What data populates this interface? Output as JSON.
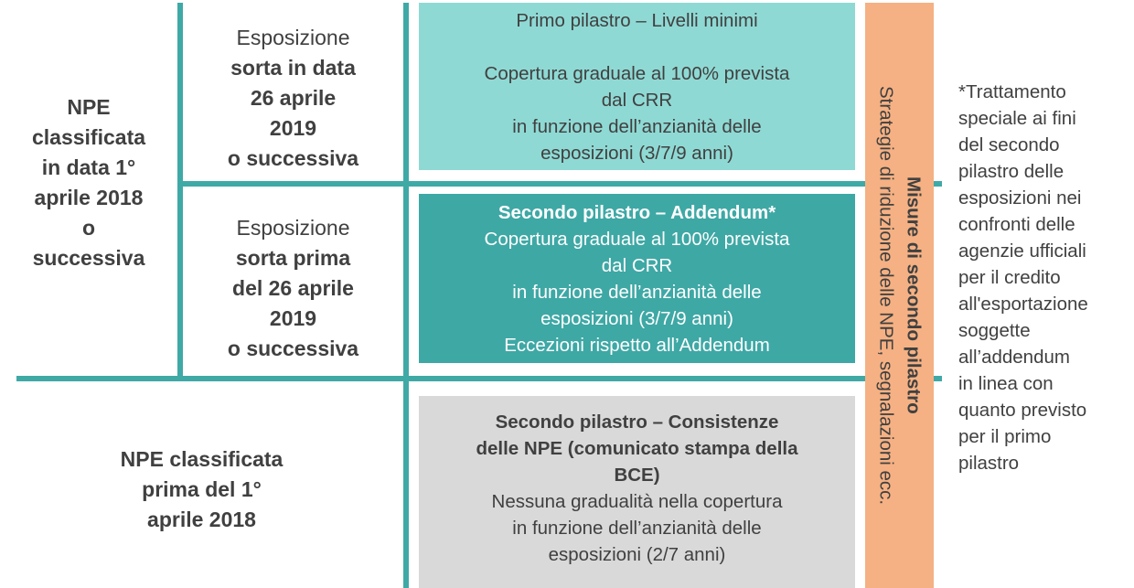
{
  "colors": {
    "line": "#3fa9a6",
    "primo": "#8fd9d4",
    "secondo": "#3ea8a5",
    "consistenze": "#d9d9d9",
    "misure": "#f5b183"
  },
  "left": {
    "top": [
      "NPE",
      "classificata",
      "in data 1°",
      "aprile 2018",
      "o",
      "successiva"
    ],
    "bottom": [
      "NPE classificata",
      "prima del 1°",
      "aprile 2018"
    ]
  },
  "middle": {
    "after": {
      "first": "Esposizione",
      "bold": [
        "sorta in data",
        "26 aprile",
        "2019",
        "o successiva"
      ]
    },
    "before": {
      "first": "Esposizione",
      "bold": [
        "sorta prima",
        "del 26 aprile",
        "2019",
        "o successiva"
      ]
    }
  },
  "boxes": {
    "primo": {
      "title": "Primo pilastro – Livelli minimi",
      "lines": [
        "Copertura graduale al 100% prevista",
        "dal CRR",
        "in funzione dell’anzianità delle",
        "esposizioni (3/7/9 anni)"
      ]
    },
    "addendum": {
      "title": "Secondo pilastro – Addendum*",
      "lines": [
        "Copertura graduale al 100% prevista",
        "dal CRR",
        "in funzione dell’anzianità delle",
        "esposizioni (3/7/9 anni)",
        "Eccezioni rispetto all’Addendum"
      ]
    },
    "consistenze": {
      "title": [
        "Secondo pilastro – Consistenze",
        "delle NPE (comunicato stampa della",
        "BCE)"
      ],
      "lines": [
        "Nessuna gradualità nella copertura",
        "in funzione dell’anzianità delle",
        "esposizioni (2/7 anni)"
      ]
    }
  },
  "misure": {
    "title": "Misure di secondo pilastro",
    "subtitle": "Strategie di riduzione delle NPE, segnalazioni ecc."
  },
  "note": [
    "*Trattamento",
    "speciale ai fini",
    "del secondo",
    "pilastro delle",
    "esposizioni nei",
    "confronti delle",
    "agenzie ufficiali",
    "per il credito",
    "all'esportazione",
    "soggette",
    "all’addendum",
    "in linea con",
    "quanto previsto",
    "per il primo",
    "pilastro"
  ]
}
